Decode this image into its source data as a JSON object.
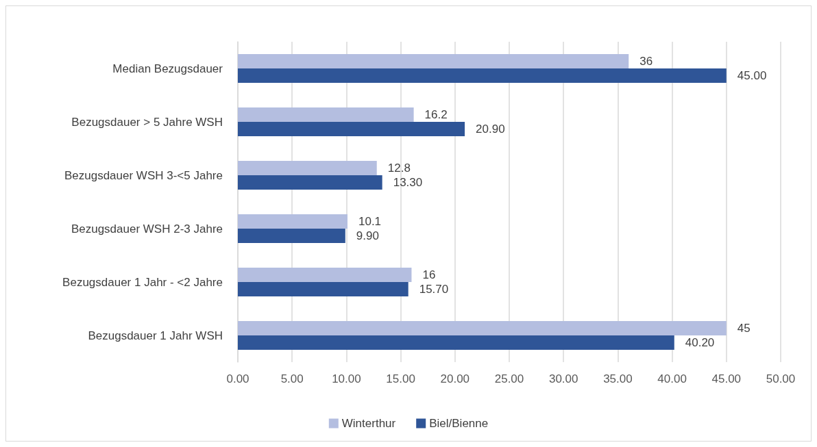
{
  "chart_data": {
    "type": "bar",
    "orientation": "horizontal",
    "categories": [
      "Median Bezugsdauer",
      "Bezugsdauer > 5 Jahre WSH",
      "Bezugsdauer WSH 3-<5 Jahre",
      "Bezugsdauer WSH 2-3 Jahre",
      "Bezugsdauer 1 Jahr - <2 Jahre",
      "Bezugsdauer 1 Jahr WSH"
    ],
    "series": [
      {
        "name": "Winterthur",
        "color": "#b4bee0",
        "values": [
          36,
          16.2,
          12.8,
          10.1,
          16,
          45
        ],
        "value_labels": [
          "36",
          "16.2",
          "12.8",
          "10.1",
          "16",
          "45"
        ]
      },
      {
        "name": "Biel/Bienne",
        "color": "#2f5597",
        "values": [
          45,
          20.9,
          13.3,
          9.9,
          15.7,
          40.2
        ],
        "value_labels": [
          "45.00",
          "20.90",
          "13.30",
          "9.90",
          "15.70",
          "40.20"
        ]
      }
    ],
    "xlim": [
      0,
      50
    ],
    "xticks": [
      {
        "value": 0,
        "label": "0.00"
      },
      {
        "value": 5,
        "label": "5.00"
      },
      {
        "value": 10,
        "label": "10.00"
      },
      {
        "value": 15,
        "label": "15.00"
      },
      {
        "value": 20,
        "label": "20.00"
      },
      {
        "value": 25,
        "label": "25.00"
      },
      {
        "value": 30,
        "label": "30.00"
      },
      {
        "value": 35,
        "label": "35.00"
      },
      {
        "value": 40,
        "label": "40.00"
      },
      {
        "value": 45,
        "label": "45.00"
      },
      {
        "value": 50,
        "label": "50.00"
      }
    ],
    "grid": "x",
    "legend": "bottom"
  }
}
